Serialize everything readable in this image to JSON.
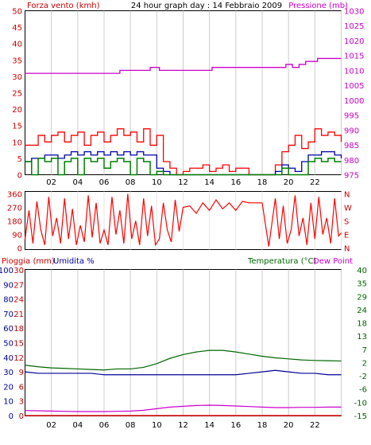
{
  "header": {
    "wind_title": "Forza vento (kmh)",
    "main_title": "24 hour graph day : 14 Febbraio 2009",
    "pressure_title": "Pressione (mb)"
  },
  "bottom_header": {
    "rain_title": "Pioggia (mm)",
    "humidity_title": "Umidita %",
    "temperature_title": "Temperatura (°C)",
    "dewpoint_title": "Dew Point"
  },
  "colors": {
    "wind": "#ff0000",
    "gust": "#ff0000",
    "wind_avg": "#0000aa",
    "wind_green": "#008000",
    "pressure": "#cc00cc",
    "direction": "#ff0000",
    "rain": "#ff0000",
    "humidity": "#000099",
    "temperature": "#006600",
    "dewpoint": "#cc00cc",
    "grid": "#cccccc"
  },
  "chart_data": [
    {
      "type": "line",
      "title": "24 hour graph day : 14 Febbraio 2009",
      "x_ticks": [
        "02",
        "04",
        "06",
        "08",
        "10",
        "12",
        "14",
        "16",
        "18",
        "20",
        "22",
        ""
      ],
      "y_left_label": "Forza vento (kmh)",
      "y_left_ticks": [
        "0",
        "5",
        "10",
        "15",
        "20",
        "25",
        "30",
        "35",
        "40",
        "45",
        "50"
      ],
      "y_left_range": [
        0,
        50
      ],
      "y_right_label": "Pressione (mb)",
      "y_right_ticks": [
        "975",
        "980",
        "985",
        "990",
        "995",
        "1000",
        "1005",
        "1010",
        "1015",
        "1020",
        "1025",
        "1030"
      ],
      "y_right_range": [
        975,
        1030
      ],
      "series": [
        {
          "name": "Pressione (mb)",
          "axis": "right",
          "x": [
            0,
            7.2,
            7.2,
            9.5,
            9.5,
            10.2,
            10.2,
            13.5,
            13.5,
            14.2,
            14.2,
            16.8,
            16.8,
            18.2,
            18.2,
            19.8,
            19.8,
            20.3,
            20.3,
            20.8,
            20.8,
            21.3,
            21.3,
            22.2,
            22.2,
            24
          ],
          "y": [
            1009,
            1009,
            1010,
            1010,
            1011,
            1011,
            1010,
            1010,
            1010,
            1010,
            1011,
            1011,
            1011,
            1011,
            1011,
            1011,
            1012,
            1012,
            1011,
            1011,
            1012,
            1012,
            1013,
            1013,
            1014,
            1014
          ]
        },
        {
          "name": "gust",
          "axis": "left",
          "x": [
            0,
            0.5,
            1,
            1.5,
            2,
            2.5,
            3,
            3.5,
            4,
            4.5,
            5,
            5.5,
            6,
            6.5,
            7,
            7.5,
            8,
            8.5,
            9,
            9.5,
            10,
            10.5,
            11,
            11.5,
            12,
            12.5,
            13,
            13.5,
            14,
            14.5,
            15,
            15.5,
            16,
            16.5,
            17,
            17.5,
            18,
            18.5,
            19,
            19.5,
            20,
            20.5,
            21,
            21.5,
            22,
            22.5,
            23,
            23.5,
            24
          ],
          "y": [
            9,
            9,
            12,
            10,
            12,
            13,
            10,
            12,
            13,
            9,
            12,
            13,
            10,
            12,
            14,
            12,
            13,
            10,
            14,
            9,
            12,
            4,
            2,
            0,
            1,
            2,
            2,
            3,
            1,
            2,
            3,
            1,
            2,
            2,
            0,
            0,
            0,
            0,
            3,
            7,
            9,
            12,
            8,
            10,
            14,
            12,
            13,
            12,
            10
          ]
        },
        {
          "name": "wind",
          "axis": "left",
          "x": [
            0,
            0.5,
            1,
            1.5,
            2,
            2.5,
            3,
            3.5,
            4,
            4.5,
            5,
            5.5,
            6,
            6.5,
            7,
            7.5,
            8,
            8.5,
            9,
            9.5,
            10,
            10.5,
            11,
            11.5,
            12,
            12.5,
            13,
            13.5,
            14,
            14.5,
            15,
            15.5,
            16,
            16.5,
            17,
            17.5,
            18,
            18.5,
            19,
            19.5,
            20,
            20.5,
            21,
            21.5,
            22,
            22.5,
            23,
            23.5,
            24
          ],
          "y": [
            4,
            5,
            5,
            6,
            6,
            5,
            6,
            7,
            6,
            7,
            6,
            7,
            6,
            7,
            6,
            7,
            6,
            7,
            6,
            6,
            2,
            1,
            0,
            0,
            0,
            0,
            0,
            0,
            0,
            0,
            0,
            0,
            0,
            0,
            0,
            0,
            0,
            0,
            1,
            3,
            2,
            1,
            4,
            6,
            6,
            7,
            7,
            6,
            5
          ]
        },
        {
          "name": "wind-green",
          "axis": "left",
          "x": [
            0,
            0.5,
            1,
            1.5,
            2,
            2.5,
            3,
            3.5,
            4,
            4.5,
            5,
            5.5,
            6,
            6.5,
            7,
            7.5,
            8,
            8.5,
            9,
            9.5,
            10,
            10.5,
            11,
            11.5,
            12,
            12.5,
            13,
            13.5,
            14,
            14.5,
            15,
            15.5,
            16,
            16.5,
            17,
            17.5,
            18,
            18.5,
            19,
            19.5,
            20,
            20.5,
            21,
            21.5,
            22,
            22.5,
            23,
            23.5,
            24
          ],
          "y": [
            4,
            0,
            5,
            4,
            5,
            0,
            4,
            5,
            0,
            5,
            4,
            5,
            2,
            4,
            5,
            4,
            0,
            5,
            4,
            0,
            1,
            0,
            0,
            0,
            0,
            0,
            0,
            0,
            0,
            0,
            0,
            0,
            0,
            0,
            0,
            0,
            0,
            0,
            0,
            2,
            0,
            0,
            0,
            4,
            5,
            4,
            5,
            4,
            4
          ]
        }
      ]
    },
    {
      "type": "line",
      "y_left_ticks": [
        "0",
        "90",
        "180",
        "270",
        "360"
      ],
      "y_left_range": [
        0,
        360
      ],
      "y_right_ticks": [
        "N",
        "E",
        "S",
        "W",
        "N"
      ],
      "series": [
        {
          "name": "direction",
          "x": [
            0,
            0.3,
            0.6,
            0.9,
            1.2,
            1.5,
            1.8,
            2.1,
            2.4,
            2.7,
            3.0,
            3.3,
            3.6,
            3.9,
            4.2,
            4.5,
            4.8,
            5.1,
            5.4,
            5.7,
            6.0,
            6.3,
            6.6,
            6.9,
            7.2,
            7.5,
            7.8,
            8.1,
            8.4,
            8.7,
            9.0,
            9.3,
            9.6,
            9.9,
            10.2,
            10.5,
            10.8,
            11.1,
            11.4,
            11.7,
            12.0,
            12.5,
            13.0,
            13.5,
            14.0,
            14.5,
            15.0,
            15.5,
            16.0,
            16.5,
            17.0,
            17.5,
            18.0,
            18.5,
            19.0,
            19.3,
            19.6,
            19.9,
            20.2,
            20.5,
            20.8,
            21.1,
            21.4,
            21.7,
            22.0,
            22.3,
            22.6,
            22.9,
            23.2,
            23.5,
            23.8,
            24.0
          ],
          "y": [
            60,
            250,
            30,
            310,
            120,
            20,
            340,
            80,
            200,
            30,
            330,
            60,
            260,
            20,
            150,
            40,
            350,
            70,
            300,
            30,
            120,
            20,
            340,
            90,
            250,
            30,
            360,
            60,
            180,
            20,
            330,
            80,
            280,
            20,
            60,
            300,
            120,
            40,
            320,
            110,
            270,
            280,
            230,
            300,
            250,
            320,
            260,
            300,
            250,
            310,
            300,
            300,
            300,
            10,
            330,
            60,
            280,
            30,
            120,
            350,
            80,
            200,
            20,
            300,
            60,
            340,
            90,
            200,
            30,
            330,
            80,
            100
          ]
        }
      ]
    },
    {
      "type": "line",
      "y_left_label": "Pioggia (mm)",
      "y_left2_label": "Umidita %",
      "y_left_ticks": [
        "0",
        "3",
        "6",
        "9",
        "12",
        "15",
        "18",
        "21",
        "24",
        "27",
        "30"
      ],
      "y_left_range": [
        0,
        30
      ],
      "y_left2_ticks": [
        "0",
        "10",
        "20",
        "30",
        "40",
        "50",
        "60",
        "70",
        "80",
        "90",
        "100"
      ],
      "y_left2_range": [
        0,
        100
      ],
      "y_right_label": "Temperatura (°C)",
      "y_right_ticks": [
        "-15",
        "-10",
        "-6",
        "-2",
        "2",
        "7",
        "13",
        "18",
        "24",
        "29",
        "35",
        "40"
      ],
      "y_right_range": [
        -15,
        40
      ],
      "series": [
        {
          "name": "Temperatura (°C)",
          "axis": "right",
          "x": [
            0,
            1,
            2,
            3,
            4,
            5,
            6,
            7,
            8,
            9,
            10,
            11,
            12,
            13,
            14,
            15,
            16,
            17,
            18,
            19,
            20,
            21,
            22,
            23,
            24
          ],
          "y": [
            4.0,
            3.4,
            3.0,
            2.8,
            2.6,
            2.4,
            2.2,
            2.6,
            2.6,
            3.2,
            4.6,
            6.6,
            8.0,
            9.0,
            9.6,
            9.6,
            9.0,
            8.2,
            7.4,
            6.8,
            6.4,
            6.0,
            5.8,
            5.7,
            5.6
          ]
        },
        {
          "name": "Umidita %",
          "axis": "left2",
          "x": [
            0,
            1,
            2,
            3,
            4,
            5,
            6,
            7,
            8,
            9,
            10,
            11,
            12,
            13,
            14,
            15,
            16,
            17,
            18,
            19,
            20,
            21,
            22,
            23,
            24
          ],
          "y": [
            30,
            29,
            29,
            29,
            29,
            29,
            28,
            28,
            28,
            28,
            28,
            28,
            28,
            28,
            28,
            28,
            28,
            29,
            30,
            31,
            30,
            29,
            29,
            28,
            28
          ]
        },
        {
          "name": "Dew Point",
          "axis": "right",
          "x": [
            0,
            1,
            2,
            3,
            4,
            5,
            6,
            7,
            8,
            9,
            10,
            11,
            12,
            13,
            14,
            15,
            16,
            17,
            18,
            19,
            20,
            21,
            22,
            23,
            24
          ],
          "y": [
            -13.1,
            -13.2,
            -13.3,
            -13.4,
            -13.5,
            -13.5,
            -13.5,
            -13.4,
            -13.3,
            -13.0,
            -12.4,
            -11.8,
            -11.5,
            -11.2,
            -11.1,
            -11.2,
            -11.4,
            -11.6,
            -11.8,
            -12.0,
            -12.0,
            -11.9,
            -11.9,
            -11.8,
            -11.8
          ]
        },
        {
          "name": "Pioggia (mm)",
          "axis": "left",
          "x": [
            0,
            24
          ],
          "y": [
            0,
            0
          ]
        }
      ]
    }
  ]
}
